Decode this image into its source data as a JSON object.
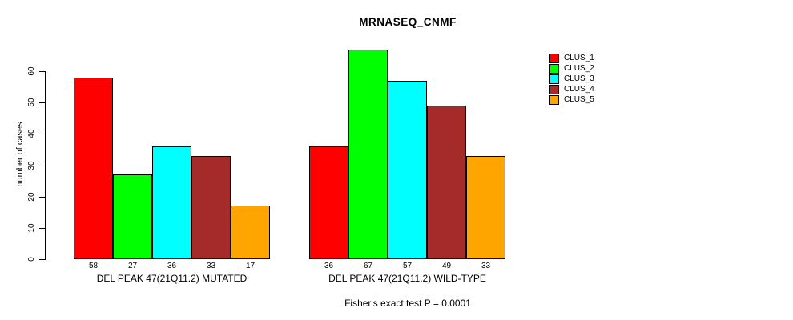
{
  "chart_data": {
    "type": "bar",
    "title": "MRNASEQ_CNMF",
    "ylabel": "number of cases",
    "categories": [
      "DEL PEAK 47(21Q11.2) MUTATED",
      "DEL PEAK 47(21Q11.2) WILD-TYPE"
    ],
    "series": [
      {
        "name": "CLUS_1",
        "color": "#FF0000",
        "values": [
          58,
          36
        ]
      },
      {
        "name": "CLUS_2",
        "color": "#00FF00",
        "values": [
          27,
          67
        ]
      },
      {
        "name": "CLUS_3",
        "color": "#00FFFF",
        "values": [
          36,
          57
        ]
      },
      {
        "name": "CLUS_4",
        "color": "#A52A2A",
        "values": [
          33,
          49
        ]
      },
      {
        "name": "CLUS_5",
        "color": "#FFA500",
        "values": [
          17,
          33
        ]
      }
    ],
    "yticks": [
      0,
      10,
      20,
      30,
      40,
      50,
      60
    ],
    "ylim": [
      0,
      67
    ],
    "grid": false,
    "bar_value_labels": true,
    "legend_position": "right",
    "annotation": "Fisher's exact test P = 0.0001"
  }
}
